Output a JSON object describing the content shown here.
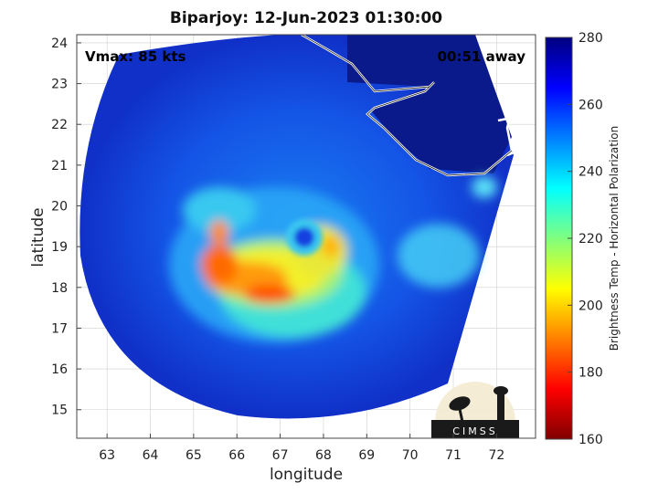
{
  "chart_data": {
    "type": "heatmap",
    "title": "Biparjoy: 12-Jun-2023 01:30:00",
    "xlabel": "longitude",
    "ylabel": "latitude",
    "xlim": [
      62.3,
      72.9
    ],
    "ylim": [
      14.3,
      24.2
    ],
    "xticks": [
      63,
      64,
      65,
      66,
      67,
      68,
      69,
      70,
      71,
      72
    ],
    "yticks": [
      15,
      16,
      17,
      18,
      19,
      20,
      21,
      22,
      23,
      24
    ],
    "grid": true,
    "storm_eye": {
      "lon": 67.6,
      "lat": 19.2
    },
    "annotations": {
      "vmax": "Vmax: 85 kts",
      "time_offset": "00:51 away"
    },
    "colorbar": {
      "label": "Brightness Temp - Horizontal Polarization",
      "range": [
        160,
        280
      ],
      "ticks": [
        160,
        180,
        200,
        220,
        240,
        260,
        280
      ],
      "colormap": "jet"
    },
    "logo_text": "CIMSS"
  },
  "colors": {
    "background": "#ffffff",
    "coastline": "#ffffff",
    "grid": "#cfcfcf"
  }
}
